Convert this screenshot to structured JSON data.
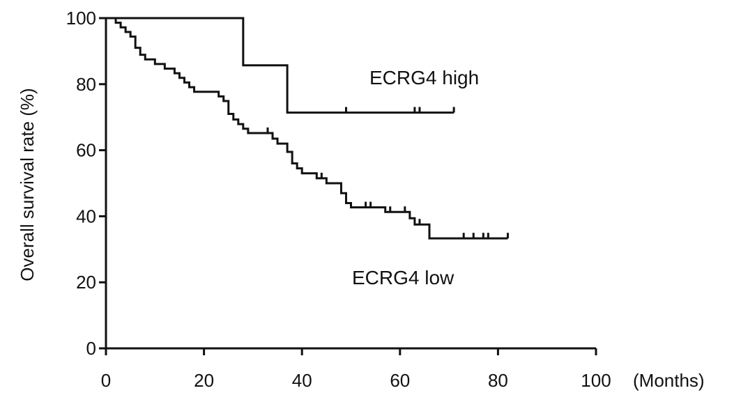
{
  "chart_data": {
    "type": "line",
    "subtype": "kaplan-meier",
    "ylabel": "Overall survival rate (%)",
    "xlabel": "(Months)",
    "xlim": [
      0,
      100
    ],
    "ylim": [
      0,
      100
    ],
    "x_ticks": [
      0,
      20,
      40,
      60,
      80,
      100
    ],
    "y_ticks": [
      0,
      20,
      40,
      60,
      80,
      100
    ],
    "x_tick_labels": [
      "0",
      "20",
      "40",
      "60",
      "80",
      "100"
    ],
    "y_tick_labels": [
      "0",
      "20",
      "40",
      "60",
      "80",
      "100"
    ],
    "grid": false,
    "legend": "none (series labeled inline)",
    "series": [
      {
        "name": "ECRG4 high",
        "color": "#111111",
        "steps": [
          [
            0,
            100
          ],
          [
            28,
            85.7
          ],
          [
            37,
            71.4
          ]
        ],
        "end_x": 71,
        "censored": [
          49,
          63,
          64,
          71
        ]
      },
      {
        "name": "ECRG4 low",
        "color": "#111111",
        "steps": [
          [
            0,
            100
          ],
          [
            2,
            98.6
          ],
          [
            3,
            97.2
          ],
          [
            4,
            95.8
          ],
          [
            5,
            94.4
          ],
          [
            6,
            91
          ],
          [
            7,
            88.9
          ],
          [
            8,
            87.5
          ],
          [
            10,
            86.1
          ],
          [
            12,
            84.7
          ],
          [
            14,
            83.3
          ],
          [
            15,
            81.9
          ],
          [
            16,
            80.5
          ],
          [
            17,
            79.1
          ],
          [
            18,
            77.7
          ],
          [
            23,
            76.3
          ],
          [
            24,
            74.9
          ],
          [
            25,
            71
          ],
          [
            26,
            69.3
          ],
          [
            27,
            67.9
          ],
          [
            28,
            66.5
          ],
          [
            29,
            65.2
          ],
          [
            34,
            63.5
          ],
          [
            35,
            62
          ],
          [
            37,
            59.5
          ],
          [
            38,
            56
          ],
          [
            39,
            54.5
          ],
          [
            40,
            53
          ],
          [
            43,
            51.5
          ],
          [
            45,
            50
          ],
          [
            48,
            47
          ],
          [
            49,
            44
          ],
          [
            50,
            42.7
          ],
          [
            57,
            41.3
          ],
          [
            62,
            39.4
          ],
          [
            63,
            37.5
          ],
          [
            66,
            33.3
          ]
        ],
        "end_x": 82,
        "censored": [
          33,
          44,
          53,
          54,
          58,
          61,
          64,
          73,
          75,
          77,
          78,
          82
        ]
      }
    ]
  }
}
